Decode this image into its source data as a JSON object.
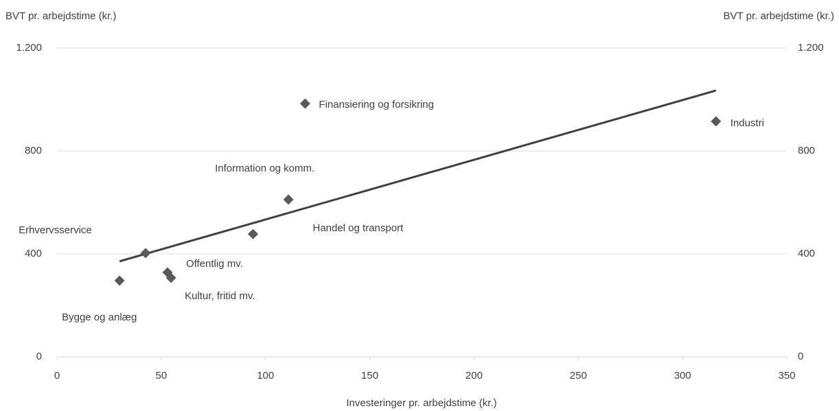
{
  "chart_data": {
    "type": "scatter",
    "ylabel": "BVT pr. arbejdstime (kr.)",
    "y2label": "BVT pr. arbejdstime (kr.)",
    "xlabel": "Investeringer pr. arbejdstime (kr.)",
    "labels": [
      "Bygge og anlæg",
      "Erhvervsservice",
      "Offentlig mv.",
      "Kultur, fritid mv.",
      "Handel og transport",
      "Information og komm.",
      "Finansiering og forsikring",
      "Industri"
    ],
    "x": [
      30,
      42.5,
      53,
      54.7,
      94,
      111,
      119,
      316
    ],
    "y": [
      296,
      403,
      328,
      307,
      477,
      611,
      984,
      915
    ],
    "color": "#595959",
    "trendline": {
      "x": [
        30,
        316
      ],
      "y": [
        371,
        1035
      ],
      "color": "#404040"
    },
    "xlim": [
      0,
      350
    ],
    "xticks": [
      0,
      50,
      100,
      150,
      200,
      250,
      300,
      350
    ],
    "ylim": [
      0,
      1200
    ],
    "yticks": [
      0,
      400,
      800,
      {
        "value": 1200,
        "label": "1.200"
      }
    ],
    "y2lim": [
      0,
      1200
    ],
    "y2ticks": [
      0,
      400,
      800,
      {
        "value": 1200,
        "label": "1.200"
      }
    ],
    "grid": true
  }
}
